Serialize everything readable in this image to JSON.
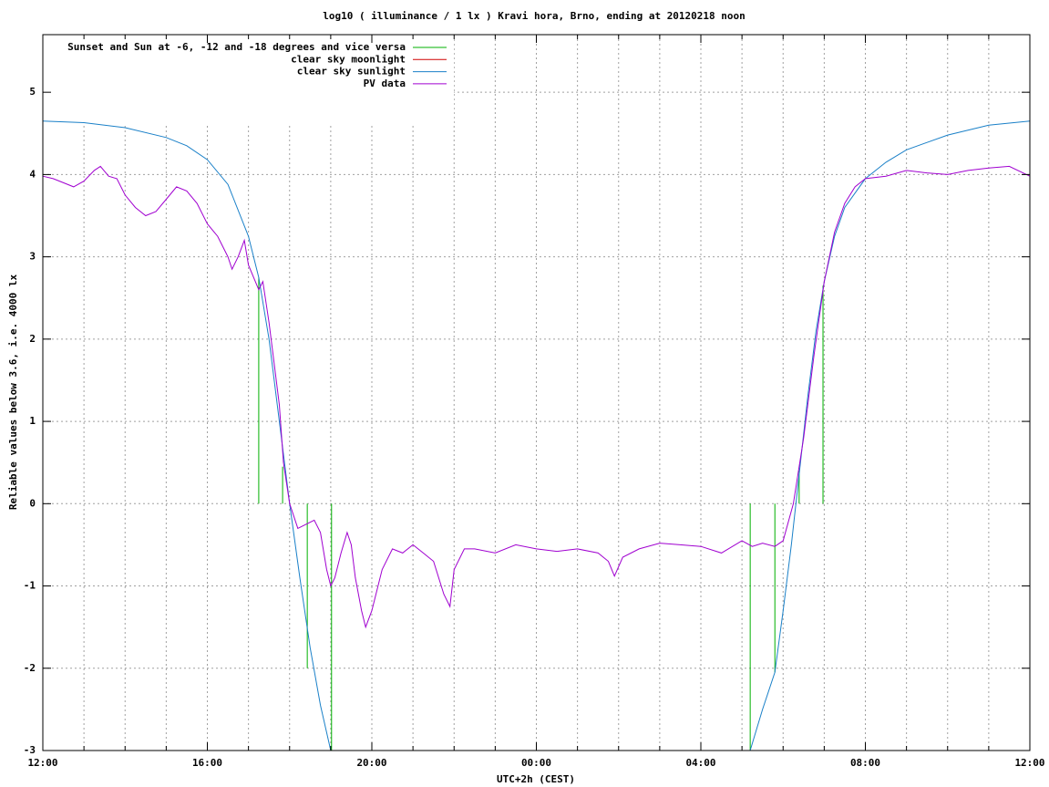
{
  "chart_data": {
    "type": "line",
    "title": "log10 ( illuminance / 1 lx ) Kravi hora, Brno, ending at 20120218 noon",
    "x_label": "UTC+2h (CEST)",
    "y_label": "Reliable values below 3.6, i.e. 4000 lx",
    "xlim": [
      0,
      24
    ],
    "ylim": [
      -3,
      5.7
    ],
    "xticks": [
      {
        "value": 0,
        "label": "12:00"
      },
      {
        "value": 4,
        "label": "16:00"
      },
      {
        "value": 8,
        "label": "20:00"
      },
      {
        "value": 12,
        "label": "00:00"
      },
      {
        "value": 16,
        "label": "04:00"
      },
      {
        "value": 20,
        "label": "08:00"
      },
      {
        "value": 24,
        "label": "12:00"
      }
    ],
    "xminorticks": [
      1,
      2,
      3,
      5,
      6,
      7,
      9,
      10,
      11,
      13,
      14,
      15,
      17,
      18,
      19,
      21,
      22,
      23
    ],
    "yticks": [
      -3,
      -2,
      -1,
      0,
      1,
      2,
      3,
      4,
      5
    ],
    "grid": true,
    "legend": "top-left",
    "series": [
      {
        "name": "Sunset and Sun at -6, -12 and -18 degrees and vice versa",
        "color": "#00b000",
        "style": "impulses",
        "x": [
          5.25,
          5.83,
          6.43,
          7.02,
          17.2,
          17.8,
          18.39,
          18.97
        ],
        "values": [
          2.75,
          0.45,
          -2,
          -3,
          -3,
          -2.05,
          0.4,
          2.65
        ]
      },
      {
        "name": "clear sky moonlight",
        "color": "#d00000",
        "style": "lines",
        "x": [],
        "values": []
      },
      {
        "name": "clear sky sunlight",
        "color": "#1a80c8",
        "style": "lines",
        "x": [
          0,
          1,
          2,
          3,
          3.5,
          4,
          4.5,
          5,
          5.25,
          5.5,
          5.75,
          6,
          6.25,
          6.5,
          6.75,
          7.0,
          17.2,
          17.5,
          17.8,
          18,
          18.2,
          18.4,
          18.6,
          18.8,
          19.0,
          19.25,
          19.5,
          20,
          20.5,
          21,
          22,
          23,
          24
        ],
        "values": [
          4.65,
          4.63,
          4.57,
          4.45,
          4.35,
          4.18,
          3.88,
          3.25,
          2.75,
          2.0,
          1.0,
          0.0,
          -0.9,
          -1.75,
          -2.45,
          -3.0,
          -3.0,
          -2.5,
          -2.05,
          -1.3,
          -0.5,
          0.4,
          1.3,
          2.1,
          2.7,
          3.25,
          3.6,
          3.95,
          4.15,
          4.3,
          4.48,
          4.6,
          4.65
        ]
      },
      {
        "name": "PV data",
        "color": "#a000d0",
        "style": "lines",
        "x": [
          0,
          0.25,
          0.5,
          0.75,
          1,
          1.25,
          1.4,
          1.6,
          1.8,
          2.0,
          2.25,
          2.5,
          2.75,
          3.0,
          3.25,
          3.5,
          3.75,
          4.0,
          4.25,
          4.5,
          4.6,
          4.75,
          4.9,
          5.0,
          5.25,
          5.35,
          5.5,
          5.75,
          5.85,
          6.0,
          6.2,
          6.4,
          6.6,
          6.75,
          6.9,
          7.0,
          7.1,
          7.25,
          7.4,
          7.5,
          7.6,
          7.75,
          7.85,
          8.0,
          8.25,
          8.5,
          8.75,
          9.0,
          9.25,
          9.5,
          9.75,
          9.9,
          10.0,
          10.25,
          10.5,
          11,
          11.5,
          12,
          12.5,
          13,
          13.5,
          13.75,
          13.9,
          14.1,
          14.5,
          15,
          15.5,
          16,
          16.5,
          17,
          17.25,
          17.5,
          17.8,
          18,
          18.25,
          18.5,
          18.75,
          19.0,
          19.25,
          19.5,
          19.75,
          20,
          20.5,
          21,
          21.5,
          22,
          22.5,
          23,
          23.5,
          24
        ],
        "values": [
          3.98,
          3.95,
          3.9,
          3.85,
          3.92,
          4.05,
          4.1,
          3.98,
          3.95,
          3.75,
          3.6,
          3.5,
          3.55,
          3.7,
          3.85,
          3.8,
          3.65,
          3.4,
          3.25,
          3.0,
          2.85,
          3.0,
          3.2,
          2.9,
          2.6,
          2.7,
          2.2,
          1.2,
          0.5,
          0.0,
          -0.3,
          -0.25,
          -0.2,
          -0.35,
          -0.8,
          -1.0,
          -0.9,
          -0.6,
          -0.35,
          -0.5,
          -0.9,
          -1.3,
          -1.5,
          -1.3,
          -0.8,
          -0.55,
          -0.6,
          -0.5,
          -0.6,
          -0.7,
          -1.1,
          -1.25,
          -0.8,
          -0.55,
          -0.55,
          -0.6,
          -0.5,
          -0.55,
          -0.58,
          -0.55,
          -0.6,
          -0.7,
          -0.88,
          -0.65,
          -0.55,
          -0.48,
          -0.5,
          -0.52,
          -0.6,
          -0.45,
          -0.52,
          -0.48,
          -0.52,
          -0.45,
          0.0,
          0.8,
          1.8,
          2.7,
          3.3,
          3.65,
          3.85,
          3.95,
          3.98,
          4.05,
          4.02,
          4.0,
          4.05,
          4.08,
          4.1,
          3.98
        ]
      }
    ]
  }
}
